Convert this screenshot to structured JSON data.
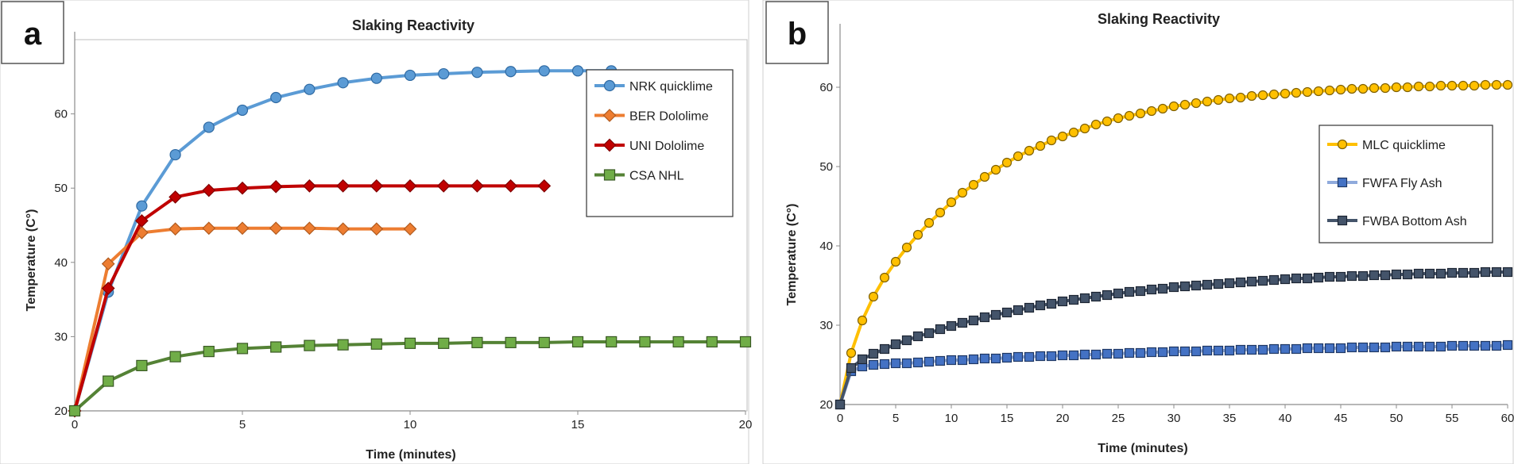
{
  "chart_data": [
    {
      "type": "line",
      "panel_label": "a",
      "title": "Slaking Reactivity",
      "xlabel": "Time (minutes)",
      "ylabel": "Temperature (C°)",
      "xlim": [
        0,
        20
      ],
      "ylim": [
        20,
        70
      ],
      "xticks": [
        0,
        5,
        10,
        15,
        20
      ],
      "yticks": [
        20,
        30,
        40,
        50,
        60
      ],
      "grid": false,
      "legend_position": "right",
      "series": [
        {
          "name": "NRK quicklime",
          "color": "#5b9bd5",
          "marker_fill": "#5b9bd5",
          "marker_stroke": "#2f6aa3",
          "marker": "circle",
          "x": [
            0,
            1,
            2,
            3,
            4,
            5,
            6,
            7,
            8,
            9,
            10,
            11,
            12,
            13,
            14,
            15,
            16
          ],
          "y": [
            20,
            36,
            47.6,
            54.5,
            58.2,
            60.5,
            62.2,
            63.3,
            64.2,
            64.8,
            65.2,
            65.4,
            65.6,
            65.7,
            65.8,
            65.8,
            65.8
          ]
        },
        {
          "name": "BER Dololime",
          "color": "#ed7d31",
          "marker_fill": "#ed7d31",
          "marker_stroke": "#b05a1e",
          "marker": "diamond",
          "x": [
            0,
            1,
            2,
            3,
            4,
            5,
            6,
            7,
            8,
            9,
            10
          ],
          "y": [
            20,
            39.8,
            44,
            44.5,
            44.6,
            44.6,
            44.6,
            44.6,
            44.5,
            44.5,
            44.5
          ]
        },
        {
          "name": "UNI Dololime",
          "color": "#c00000",
          "marker_fill": "#c00000",
          "marker_stroke": "#800000",
          "marker": "diamond",
          "x": [
            0,
            1,
            2,
            3,
            4,
            5,
            6,
            7,
            8,
            9,
            10,
            11,
            12,
            13,
            14
          ],
          "y": [
            20,
            36.5,
            45.6,
            48.8,
            49.7,
            50,
            50.2,
            50.3,
            50.3,
            50.3,
            50.3,
            50.3,
            50.3,
            50.3,
            50.3
          ]
        },
        {
          "name": "CSA NHL",
          "color": "#548235",
          "marker_fill": "#70ad47",
          "marker_stroke": "#3a5a24",
          "marker": "square",
          "x": [
            0,
            1,
            2,
            3,
            4,
            5,
            6,
            7,
            8,
            9,
            10,
            11,
            12,
            13,
            14,
            15,
            16,
            17,
            18,
            19,
            20
          ],
          "y": [
            20,
            24,
            26.1,
            27.3,
            28,
            28.4,
            28.6,
            28.8,
            28.9,
            29,
            29.1,
            29.1,
            29.2,
            29.2,
            29.2,
            29.3,
            29.3,
            29.3,
            29.3,
            29.3,
            29.3
          ]
        }
      ]
    },
    {
      "type": "line",
      "panel_label": "b",
      "title": "Slaking Reactivity",
      "xlabel": "Time (minutes)",
      "ylabel": "Temperature (C°)",
      "xlim": [
        0,
        60
      ],
      "ylim": [
        20,
        67
      ],
      "xticks": [
        0,
        5,
        10,
        15,
        20,
        25,
        30,
        35,
        40,
        45,
        50,
        55,
        60
      ],
      "yticks": [
        20,
        30,
        40,
        50,
        60
      ],
      "grid": false,
      "legend_position": "right",
      "series": [
        {
          "name": "MLC quicklime",
          "color": "#ffc000",
          "marker_fill": "#ffc000",
          "marker_stroke": "#7f6000",
          "marker": "circle",
          "model": {
            "start": 20,
            "plateau": 60.6,
            "k": 0.08,
            "jump": 7,
            "tau": 1.2
          }
        },
        {
          "name": "FWFA Fly Ash",
          "color": "#8faadc",
          "marker_fill": "#4472c4",
          "marker_stroke": "#1f3864",
          "marker": "square",
          "model": {
            "start": 20,
            "plateau": 28,
            "k": 0.03,
            "jump": 4.7,
            "tau": 0.5
          }
        },
        {
          "name": "FWBA Bottom Ash",
          "color": "#44546a",
          "marker_fill": "#44546a",
          "marker_stroke": "#1c2533",
          "marker": "square",
          "model": {
            "start": 20,
            "plateau": 37.2,
            "k": 0.055,
            "jump": 4.5,
            "tau": 0.5
          }
        }
      ]
    }
  ]
}
